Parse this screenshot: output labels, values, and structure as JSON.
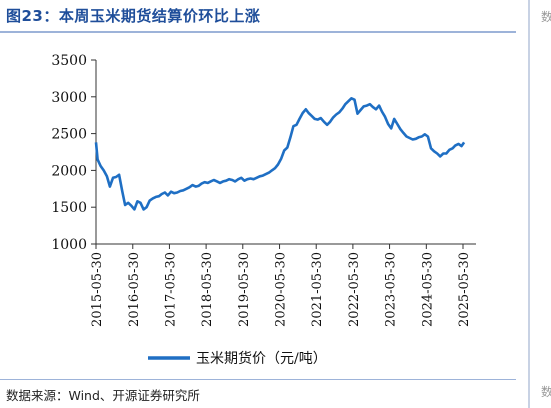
{
  "header": {
    "title": "图23：本周玉米期货结算价环比上涨"
  },
  "footer": {
    "source": "数据来源：Wind、开源证券研究所"
  },
  "edge": {
    "glyph": "数"
  },
  "colors": {
    "series": "#1f6fc4",
    "title": "#1f4e9a",
    "rule": "#9db3d9"
  },
  "chart_data": {
    "type": "line",
    "title": "",
    "xlabel": "",
    "ylabel": "",
    "ylim": [
      1000,
      3500
    ],
    "yticks": [
      1000,
      1500,
      2000,
      2500,
      3000,
      3500
    ],
    "xticks": [
      "2015-05-30",
      "2016-05-30",
      "2017-05-30",
      "2018-05-30",
      "2019-05-30",
      "2020-05-30",
      "2021-05-30",
      "2022-05-30",
      "2023-05-30",
      "2024-05-30",
      "2025-05-30"
    ],
    "legend": {
      "placement": "bottom"
    },
    "grid": false,
    "series": [
      {
        "name": "玉米期货价（元/吨）",
        "color": "#1f6fc4",
        "x": [
          "2015-05-30",
          "2015-06-15",
          "2015-07-15",
          "2015-08-15",
          "2015-09-15",
          "2015-10-15",
          "2015-11-15",
          "2015-12-15",
          "2016-01-15",
          "2016-02-15",
          "2016-03-15",
          "2016-04-15",
          "2016-05-15",
          "2016-06-15",
          "2016-07-15",
          "2016-08-15",
          "2016-09-15",
          "2016-10-15",
          "2016-11-15",
          "2016-12-15",
          "2017-01-15",
          "2017-02-15",
          "2017-03-15",
          "2017-04-15",
          "2017-05-15",
          "2017-06-15",
          "2017-07-15",
          "2017-08-15",
          "2017-09-15",
          "2017-10-15",
          "2017-11-15",
          "2017-12-15",
          "2018-01-15",
          "2018-02-15",
          "2018-03-15",
          "2018-04-15",
          "2018-05-15",
          "2018-06-15",
          "2018-07-15",
          "2018-08-15",
          "2018-09-15",
          "2018-10-15",
          "2018-11-15",
          "2018-12-15",
          "2019-01-15",
          "2019-02-15",
          "2019-03-15",
          "2019-04-15",
          "2019-05-15",
          "2019-06-15",
          "2019-07-15",
          "2019-08-15",
          "2019-09-15",
          "2019-10-15",
          "2019-11-15",
          "2019-12-15",
          "2020-01-15",
          "2020-02-15",
          "2020-03-15",
          "2020-04-15",
          "2020-05-15",
          "2020-06-15",
          "2020-07-15",
          "2020-08-15",
          "2020-09-15",
          "2020-10-15",
          "2020-11-15",
          "2020-12-15",
          "2021-01-15",
          "2021-02-15",
          "2021-03-15",
          "2021-04-15",
          "2021-05-15",
          "2021-06-15",
          "2021-07-15",
          "2021-08-15",
          "2021-09-15",
          "2021-10-15",
          "2021-11-15",
          "2021-12-15",
          "2022-01-15",
          "2022-02-15",
          "2022-03-15",
          "2022-04-15",
          "2022-05-15",
          "2022-06-15",
          "2022-07-15",
          "2022-08-15",
          "2022-09-15",
          "2022-10-15",
          "2022-11-15",
          "2022-12-15",
          "2023-01-15",
          "2023-02-15",
          "2023-03-15",
          "2023-04-15",
          "2023-05-15",
          "2023-06-15",
          "2023-07-15",
          "2023-08-15",
          "2023-09-15",
          "2023-10-15",
          "2023-11-15",
          "2023-12-15",
          "2024-01-15",
          "2024-02-15",
          "2024-03-15",
          "2024-04-15",
          "2024-05-15",
          "2024-06-15",
          "2024-07-15",
          "2024-08-15",
          "2024-09-15",
          "2024-10-15",
          "2024-11-15",
          "2024-12-15",
          "2025-01-15",
          "2025-02-15",
          "2025-03-15",
          "2025-04-15",
          "2025-05-15",
          "2025-06-10"
        ],
        "values": [
          2380,
          2150,
          2060,
          2000,
          1920,
          1780,
          1900,
          1910,
          1940,
          1720,
          1530,
          1560,
          1520,
          1470,
          1580,
          1560,
          1470,
          1500,
          1590,
          1620,
          1640,
          1650,
          1680,
          1700,
          1660,
          1710,
          1690,
          1700,
          1720,
          1730,
          1750,
          1770,
          1800,
          1780,
          1790,
          1820,
          1840,
          1830,
          1850,
          1870,
          1850,
          1830,
          1850,
          1860,
          1880,
          1870,
          1850,
          1880,
          1900,
          1860,
          1880,
          1890,
          1880,
          1900,
          1920,
          1930,
          1950,
          1970,
          2000,
          2030,
          2080,
          2160,
          2270,
          2310,
          2450,
          2600,
          2620,
          2700,
          2780,
          2830,
          2780,
          2740,
          2700,
          2690,
          2710,
          2660,
          2620,
          2660,
          2720,
          2760,
          2790,
          2840,
          2900,
          2940,
          2980,
          2960,
          2770,
          2820,
          2870,
          2880,
          2900,
          2860,
          2830,
          2880,
          2800,
          2730,
          2630,
          2570,
          2700,
          2630,
          2560,
          2510,
          2460,
          2440,
          2420,
          2430,
          2450,
          2460,
          2490,
          2460,
          2300,
          2260,
          2230,
          2190,
          2230,
          2230,
          2280,
          2300,
          2340,
          2360,
          2330,
          2380
        ]
      }
    ]
  }
}
